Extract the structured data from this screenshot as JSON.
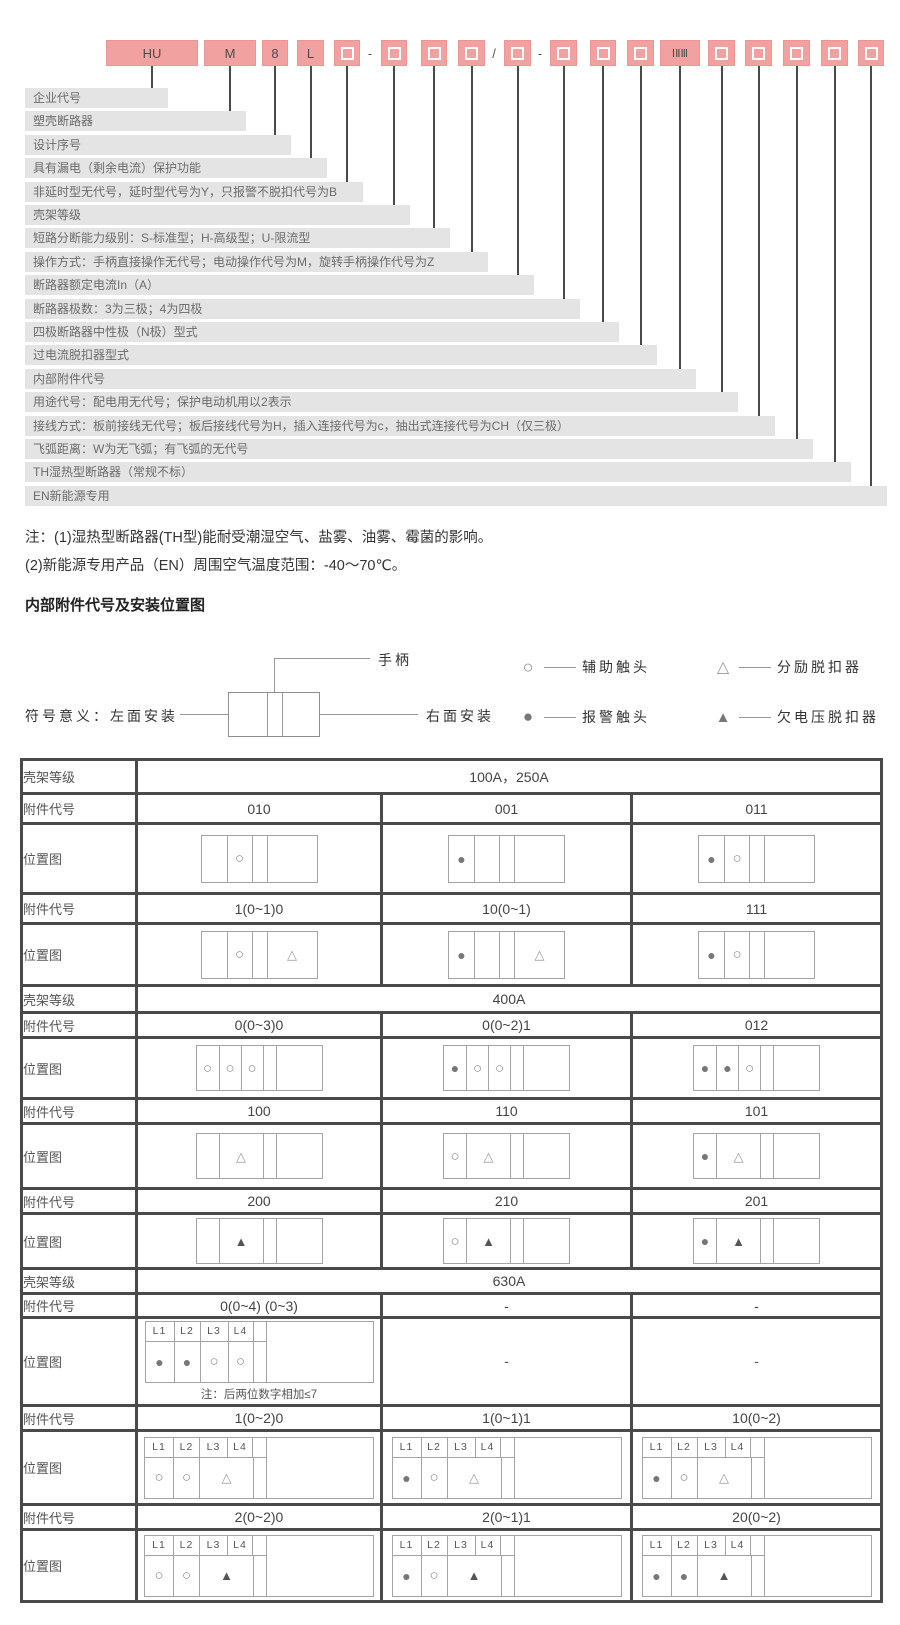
{
  "colors": {
    "model_box_pink": "#F2A1A1",
    "label_bar_gray": "#E4E4E4",
    "table_border": "#4A4A4A"
  },
  "model": {
    "boxes": [
      {
        "type": "text",
        "label": "HU"
      },
      {
        "type": "text",
        "label": "M"
      },
      {
        "type": "text",
        "label": "8"
      },
      {
        "type": "text",
        "label": "L"
      },
      {
        "type": "placeholder"
      },
      {
        "type": "placeholder"
      },
      {
        "type": "placeholder"
      },
      {
        "type": "placeholder"
      },
      {
        "type": "placeholder"
      },
      {
        "type": "placeholder"
      },
      {
        "type": "placeholder"
      },
      {
        "type": "placeholder"
      },
      {
        "type": "text",
        "label": "ⅠⅡⅢ"
      },
      {
        "type": "placeholder"
      },
      {
        "type": "placeholder"
      },
      {
        "type": "placeholder"
      },
      {
        "type": "placeholder"
      },
      {
        "type": "placeholder"
      }
    ],
    "separators": [
      "-",
      "/",
      "-"
    ],
    "labels": [
      "企业代号",
      "塑壳断路器",
      "设计序号",
      "具有漏电（剩余电流）保护功能",
      "非延时型无代号，延时型代号为Y，只报警不脱扣代号为B",
      "壳架等级",
      "短路分断能力级别：S-标准型；H-高级型；U-限流型",
      "操作方式：手柄直接操作无代号；电动操作代号为M，旋转手柄操作代号为Z",
      "断路器额定电流In（A）",
      "断路器极数：3为三极；4为四极",
      "四极断路器中性极（N极）型式",
      "过电流脱扣器型式",
      "内部附件代号",
      "用途代号：配电用无代号；保护电动机用以2表示",
      "接线方式：板前接线无代号；板后接线代号为H，插入连接代号为c，抽出式连接代号为CH（仅三极）",
      "飞弧距离：W为无飞弧；有飞弧的无代号",
      "TH湿热型断路器（常规不标）",
      "EN新能源专用"
    ]
  },
  "notes": {
    "line1": "注：(1)湿热型断路器(TH型)能耐受潮湿空气、盐雾、油雾、霉菌的影响。",
    "line2": "(2)新能源专用产品（EN）周围空气温度范围：-40～70℃。"
  },
  "section_title": "内部附件代号及安装位置图",
  "install": {
    "meaning_left": "符号意义：左面安装",
    "handle": "手柄",
    "right": "右面安装"
  },
  "legend": [
    {
      "symbol": "circle-outline",
      "glyph": "○",
      "label": "辅助触头"
    },
    {
      "symbol": "triangle-outline",
      "glyph": "△",
      "label": "分励脱扣器"
    },
    {
      "symbol": "circle-filled",
      "glyph": "●",
      "label": "报警触头"
    },
    {
      "symbol": "triangle-filled",
      "glyph": "▲",
      "label": "欠电压脱扣器"
    }
  ],
  "table": {
    "row_labels": {
      "frame": "壳架等级",
      "code": "附件代号",
      "position": "位置图"
    },
    "sections": [
      {
        "frame_value": "100A，250A",
        "rows": [
          {
            "codes": [
              "010",
              "001",
              "011"
            ],
            "diagrams": [
              {
                "type": "A",
                "cells": [
                  "",
                  "c",
                  "",
                  ""
                ]
              },
              {
                "type": "A",
                "cells": [
                  "C",
                  "",
                  "",
                  ""
                ]
              },
              {
                "type": "A",
                "cells": [
                  "C",
                  "c",
                  "",
                  ""
                ]
              }
            ]
          },
          {
            "codes": [
              "1(0~1)0",
              "10(0~1)",
              "111"
            ],
            "diagrams": [
              {
                "type": "A",
                "cells": [
                  "",
                  "c",
                  "",
                  "t"
                ]
              },
              {
                "type": "A",
                "cells": [
                  "C",
                  "",
                  "",
                  "t"
                ]
              },
              {
                "type": "A",
                "cells": [
                  "C",
                  "c",
                  "",
                  ""
                ]
              }
            ]
          }
        ]
      },
      {
        "frame_value": "400A",
        "rows": [
          {
            "codes": [
              "0(0~3)0",
              "0(0~2)1",
              "012"
            ],
            "diagrams": [
              {
                "type": "B",
                "cells": [
                  "c",
                  "c",
                  "c",
                  "",
                  ""
                ]
              },
              {
                "type": "B",
                "cells": [
                  "C",
                  "c",
                  "c",
                  "",
                  ""
                ]
              },
              {
                "type": "B",
                "cells": [
                  "C",
                  "C",
                  "c",
                  "",
                  ""
                ]
              }
            ]
          },
          {
            "codes": [
              "100",
              "110",
              "101"
            ],
            "diagrams": [
              {
                "type": "C",
                "cells": [
                  "",
                  "t",
                  "",
                  ""
                ]
              },
              {
                "type": "C",
                "cells": [
                  "c",
                  "t",
                  "",
                  ""
                ]
              },
              {
                "type": "C",
                "cells": [
                  "C",
                  "t",
                  "",
                  ""
                ]
              }
            ]
          },
          {
            "codes": [
              "200",
              "210",
              "201"
            ],
            "diagrams": [
              {
                "type": "C",
                "cells": [
                  "",
                  "T",
                  "",
                  ""
                ]
              },
              {
                "type": "C",
                "cells": [
                  "c",
                  "T",
                  "",
                  ""
                ]
              },
              {
                "type": "C",
                "cells": [
                  "C",
                  "T",
                  "",
                  ""
                ]
              }
            ]
          }
        ]
      },
      {
        "frame_value": "630A",
        "rows": [
          {
            "codes": [
              "0(0~4) (0~3)",
              "-",
              "-"
            ],
            "diagrams": [
              {
                "type": "D",
                "header": [
                  "L1",
                  "L2",
                  "L3",
                  "L4"
                ],
                "body": [
                  "C",
                  "C",
                  "c",
                  "c"
                ],
                "merged": false,
                "note": "注：后两位数字相加≤7"
              },
              {
                "type": "dash",
                "text": "-"
              },
              {
                "type": "dash",
                "text": "-"
              }
            ]
          },
          {
            "codes": [
              "1(0~2)0",
              "1(0~1)1",
              "10(0~2)"
            ],
            "diagrams": [
              {
                "type": "D",
                "header": [
                  "L1",
                  "L2",
                  "L3",
                  "L4"
                ],
                "body": [
                  "c",
                  "c",
                  "t"
                ],
                "merged": true
              },
              {
                "type": "D",
                "header": [
                  "L1",
                  "L2",
                  "L3",
                  "L4"
                ],
                "body": [
                  "C",
                  "c",
                  "t"
                ],
                "merged": true
              },
              {
                "type": "D",
                "header": [
                  "L1",
                  "L2",
                  "L3",
                  "L4"
                ],
                "body": [
                  "C",
                  "c",
                  "t"
                ],
                "merged": true
              }
            ]
          },
          {
            "codes": [
              "2(0~2)0",
              "2(0~1)1",
              "20(0~2)"
            ],
            "diagrams": [
              {
                "type": "D",
                "header": [
                  "L1",
                  "L2",
                  "L3",
                  "L4"
                ],
                "body": [
                  "c",
                  "c",
                  "T"
                ],
                "merged": true
              },
              {
                "type": "D",
                "header": [
                  "L1",
                  "L2",
                  "L3",
                  "L4"
                ],
                "body": [
                  "C",
                  "c",
                  "T"
                ],
                "merged": true
              },
              {
                "type": "D",
                "header": [
                  "L1",
                  "L2",
                  "L3",
                  "L4"
                ],
                "body": [
                  "C",
                  "C",
                  "T"
                ],
                "merged": true
              }
            ]
          }
        ]
      }
    ]
  }
}
